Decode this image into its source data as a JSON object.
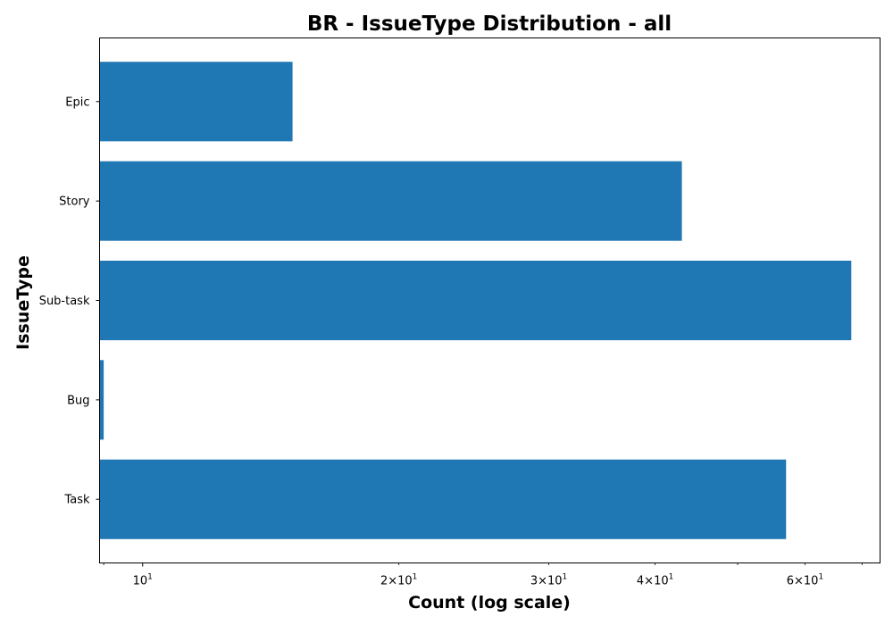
{
  "chart_data": {
    "type": "bar",
    "orientation": "horizontal",
    "title": "BR - IssueType Distribution - all",
    "xlabel": "Count (log scale)",
    "ylabel": "IssueType",
    "xscale": "log",
    "xlim": [
      8.9,
      73.5
    ],
    "categories": [
      "Epic",
      "Story",
      "Sub-task",
      "Bug",
      "Task"
    ],
    "values": [
      15,
      43,
      68,
      9,
      57
    ],
    "major_ticks": [
      {
        "value": 10,
        "base": "10",
        "exp": "1"
      }
    ],
    "minor_ticks": [
      {
        "value": 9,
        "label": null
      },
      {
        "value": 20,
        "base": "2×10",
        "exp": "1"
      },
      {
        "value": 30,
        "base": "3×10",
        "exp": "1"
      },
      {
        "value": 40,
        "base": "4×10",
        "exp": "1"
      },
      {
        "value": 50,
        "label": null
      },
      {
        "value": 60,
        "base": "6×10",
        "exp": "1"
      },
      {
        "value": 70,
        "label": null
      }
    ],
    "bar_color": "#1f77b4",
    "grid": false,
    "legend": "none"
  }
}
